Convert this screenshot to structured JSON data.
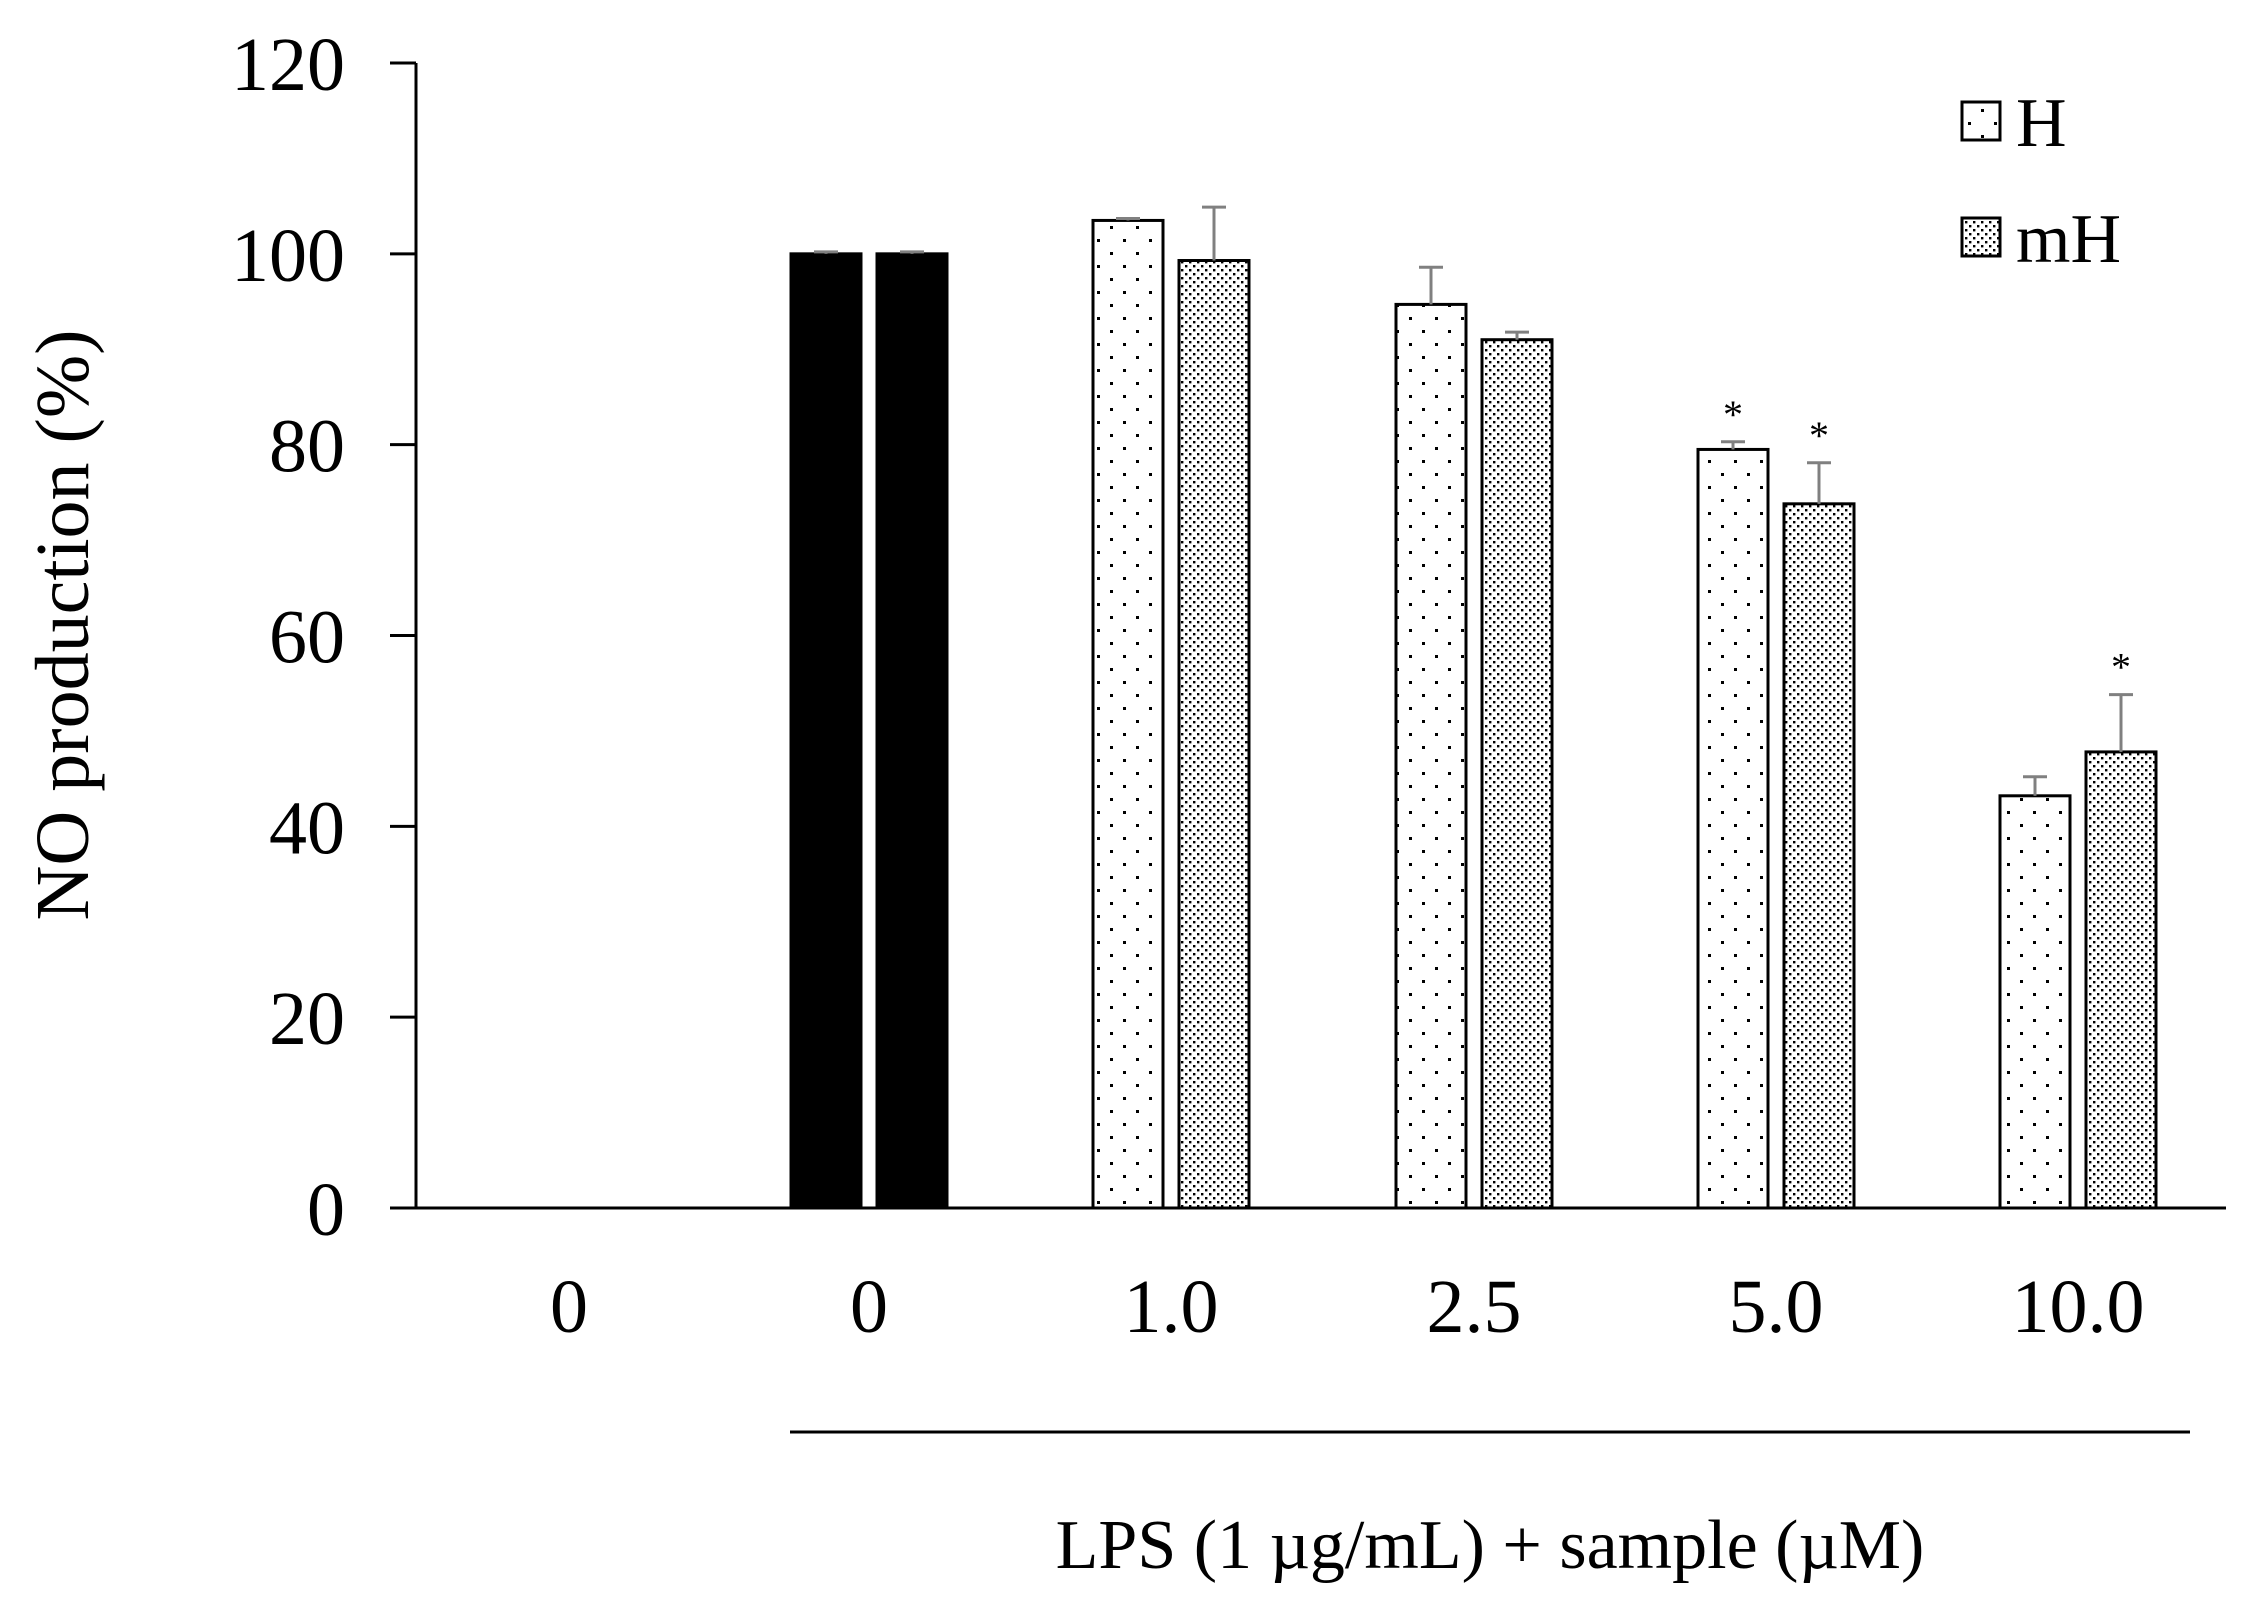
{
  "chart_data": {
    "type": "bar",
    "ylabel": "NO production (%)",
    "xlabel": "LPS (1 µg/mL) + sample (µM)",
    "ylim": [
      0,
      120
    ],
    "yticks": [
      "0",
      "20",
      "40",
      "60",
      "80",
      "100",
      "120"
    ],
    "categories": [
      "0",
      "0",
      "1.0",
      "2.5",
      "5.0",
      "10.0"
    ],
    "legend_position": "top-right",
    "series": [
      {
        "name": "H",
        "pattern": "sparse-dots",
        "values": [
          0,
          100,
          103.5,
          94.7,
          79.5,
          43.2
        ],
        "errors": [
          0,
          0.2,
          0.2,
          3.9,
          0.8,
          2.0
        ],
        "significance": [
          "",
          "",
          "",
          "",
          "*",
          ""
        ]
      },
      {
        "name": "mH",
        "pattern": "dense-dots",
        "values": [
          0,
          100,
          99.3,
          91.0,
          73.8,
          47.8
        ],
        "errors": [
          0,
          0.2,
          5.6,
          0.8,
          4.3,
          6.0
        ],
        "significance": [
          "",
          "",
          "",
          "",
          "*",
          "*"
        ]
      }
    ],
    "control_fill": "#000000",
    "error_bar_color": "#808080"
  }
}
